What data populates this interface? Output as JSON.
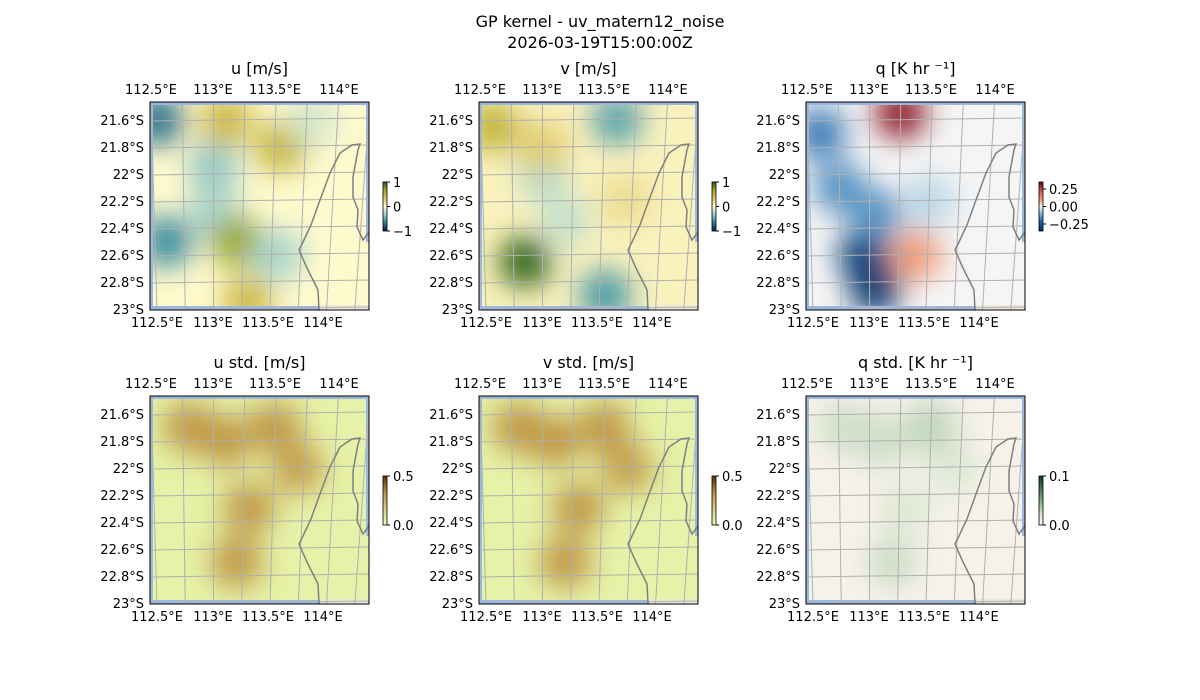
{
  "figure": {
    "title_line1": "GP kernel - uv_matern12_noise",
    "title_line2": "2026-03-19T15:00:00Z"
  },
  "chart_data": [
    {
      "type": "heatmap",
      "title": "u [m/s]",
      "cmap": "uv",
      "vmin": -1,
      "vmax": 1,
      "colorbar_ticks": [
        "1",
        "0",
        "−1"
      ],
      "colorbar_values": [
        1,
        0,
        -1
      ],
      "background": 0,
      "blobs": [
        [
          112.55,
          -21.6,
          -0.7
        ],
        [
          112.6,
          -22.5,
          -0.6
        ],
        [
          113.0,
          -21.95,
          -0.35
        ],
        [
          113.0,
          -22.3,
          -0.3
        ],
        [
          113.1,
          -21.6,
          0.45
        ],
        [
          113.55,
          -21.8,
          0.5
        ],
        [
          113.2,
          -22.5,
          0.7
        ],
        [
          113.3,
          -22.95,
          0.45
        ],
        [
          113.55,
          -22.6,
          -0.3
        ],
        [
          113.8,
          -21.6,
          -0.15
        ]
      ]
    },
    {
      "type": "heatmap",
      "title": "v [m/s]",
      "cmap": "uv",
      "vmin": -1,
      "vmax": 1,
      "colorbar_ticks": [
        "1",
        "0",
        "−1"
      ],
      "colorbar_values": [
        1,
        0,
        -1
      ],
      "background": 0.05,
      "blobs": [
        [
          112.85,
          -22.65,
          0.95
        ],
        [
          112.6,
          -21.65,
          0.5
        ],
        [
          113.6,
          -21.6,
          -0.5
        ],
        [
          113.0,
          -22.0,
          -0.25
        ],
        [
          113.55,
          -22.9,
          -0.55
        ],
        [
          113.2,
          -22.35,
          -0.2
        ],
        [
          113.0,
          -21.8,
          0.3
        ],
        [
          113.7,
          -22.2,
          0.2
        ]
      ]
    },
    {
      "type": "heatmap",
      "title": "q [K hr ⁻¹]",
      "cmap": "q",
      "vmin": -0.35,
      "vmax": 0.35,
      "colorbar_ticks": [
        "0.25",
        "0.00",
        "−0.25"
      ],
      "colorbar_values": [
        0.25,
        0,
        -0.25
      ],
      "background": 0,
      "blobs": [
        [
          112.6,
          -21.7,
          -0.18
        ],
        [
          112.75,
          -22.1,
          -0.15
        ],
        [
          112.95,
          -22.6,
          -0.3
        ],
        [
          113.05,
          -22.85,
          -0.32
        ],
        [
          113.25,
          -21.55,
          0.3
        ],
        [
          113.4,
          -22.6,
          0.1
        ],
        [
          113.05,
          -22.3,
          -0.15
        ],
        [
          113.5,
          -22.2,
          -0.05
        ]
      ]
    },
    {
      "type": "heatmap",
      "title": "u std. [m/s]",
      "cmap": "std",
      "vmin": 0,
      "vmax": 0.5,
      "colorbar_ticks": [
        "0.5",
        "0.0"
      ],
      "colorbar_values": [
        0.5,
        0
      ],
      "background": 0.05,
      "blobs": [
        [
          113.1,
          -21.8,
          0.32
        ],
        [
          113.5,
          -21.7,
          0.32
        ],
        [
          113.3,
          -22.3,
          0.32
        ],
        [
          113.2,
          -22.7,
          0.32
        ],
        [
          112.8,
          -21.7,
          0.32
        ],
        [
          113.7,
          -22.0,
          0.3
        ]
      ]
    },
    {
      "type": "heatmap",
      "title": "v std. [m/s]",
      "cmap": "std",
      "vmin": 0,
      "vmax": 0.5,
      "colorbar_ticks": [
        "0.5",
        "0.0"
      ],
      "colorbar_values": [
        0.5,
        0
      ],
      "background": 0.05,
      "blobs": [
        [
          113.1,
          -21.8,
          0.32
        ],
        [
          113.5,
          -21.7,
          0.32
        ],
        [
          113.3,
          -22.3,
          0.32
        ],
        [
          113.2,
          -22.7,
          0.32
        ],
        [
          112.8,
          -21.7,
          0.32
        ],
        [
          113.7,
          -22.0,
          0.3
        ]
      ]
    },
    {
      "type": "heatmap",
      "title": "q std. [K hr ⁻¹]",
      "cmap": "qstd",
      "vmin": 0,
      "vmax": 0.1,
      "colorbar_ticks": [
        "0.1",
        "0.0"
      ],
      "colorbar_values": [
        0.1,
        0
      ],
      "background": 0.005,
      "blobs": [
        [
          113.1,
          -21.8,
          0.025
        ],
        [
          113.5,
          -21.7,
          0.03
        ],
        [
          113.3,
          -22.3,
          0.02
        ],
        [
          113.2,
          -22.7,
          0.025
        ],
        [
          112.8,
          -21.7,
          0.025
        ],
        [
          113.7,
          -22.0,
          0.02
        ]
      ]
    }
  ],
  "axes": {
    "lon_ticks": [
      "112.5°E",
      "113°E",
      "113.5°E",
      "114°E"
    ],
    "lon_values": [
      112.5,
      113,
      113.5,
      114
    ],
    "lat_ticks": [
      "21.6°S",
      "21.8°S",
      "22°S",
      "22.2°S",
      "22.4°S",
      "22.6°S",
      "22.8°S",
      "23°S"
    ],
    "lat_values": [
      -21.6,
      -21.8,
      -22.0,
      -22.2,
      -22.4,
      -22.6,
      -22.8,
      -23.0
    ]
  },
  "colors": {
    "ocean": "#9cb8e0",
    "grid": "#b0b0b0",
    "coast": "#808080",
    "land_edge": "#ece9d8"
  }
}
